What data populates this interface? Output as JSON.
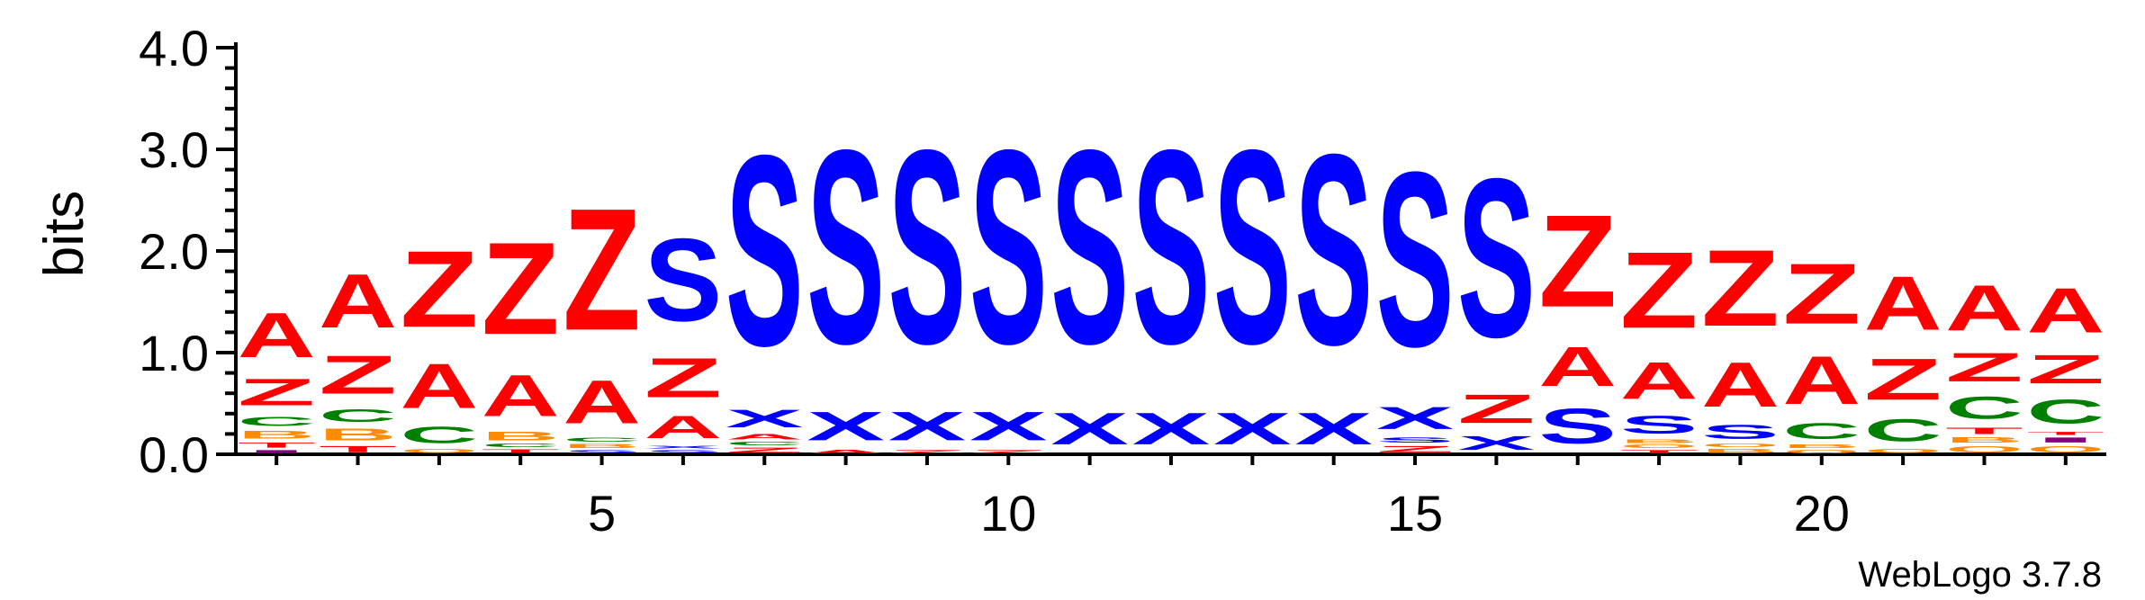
{
  "chart_data": {
    "type": "sequence-logo",
    "ylabel": "bits",
    "ylim": [
      0,
      4.0
    ],
    "yticks": [
      {
        "value": 0.0,
        "label": "0.0"
      },
      {
        "value": 1.0,
        "label": "1.0"
      },
      {
        "value": 2.0,
        "label": "2.0"
      },
      {
        "value": 3.0,
        "label": "3.0"
      },
      {
        "value": 4.0,
        "label": "4.0"
      }
    ],
    "xticks": [
      {
        "value": 5,
        "label": "5"
      },
      {
        "value": 10,
        "label": "10"
      },
      {
        "value": 15,
        "label": "15"
      },
      {
        "value": 20,
        "label": "20"
      }
    ],
    "positions": 23,
    "footer": "WebLogo 3.7.8",
    "colors": {
      "A": "#ff0000",
      "Z": "#ff0000",
      "S": "#0000ff",
      "X": "#0000ff",
      "C": "#008000",
      "B": "#ff8c00",
      "T": "#ff0000",
      "I": "#800080",
      "O": "#ff8c00"
    },
    "columns": [
      {
        "position": 1,
        "stack": [
          {
            "letter": "I",
            "height": 0.05
          },
          {
            "letter": "T",
            "height": 0.08
          },
          {
            "letter": "B",
            "height": 0.12
          },
          {
            "letter": "C",
            "height": 0.15
          },
          {
            "letter": "Z",
            "height": 0.42
          },
          {
            "letter": "A",
            "height": 0.7
          }
        ]
      },
      {
        "position": 2,
        "stack": [
          {
            "letter": "T",
            "height": 0.1
          },
          {
            "letter": "B",
            "height": 0.18
          },
          {
            "letter": "C",
            "height": 0.2
          },
          {
            "letter": "Z",
            "height": 0.6
          },
          {
            "letter": "A",
            "height": 0.85
          }
        ]
      },
      {
        "position": 3,
        "stack": [
          {
            "letter": "O",
            "height": 0.06
          },
          {
            "letter": "C",
            "height": 0.26
          },
          {
            "letter": "A",
            "height": 0.7
          },
          {
            "letter": "Z",
            "height": 1.2
          }
        ]
      },
      {
        "position": 4,
        "stack": [
          {
            "letter": "T",
            "height": 0.06
          },
          {
            "letter": "C",
            "height": 0.05
          },
          {
            "letter": "B",
            "height": 0.14
          },
          {
            "letter": "A",
            "height": 0.65
          },
          {
            "letter": "Z",
            "height": 1.45
          }
        ]
      },
      {
        "position": 5,
        "stack": [
          {
            "letter": "S",
            "height": 0.05
          },
          {
            "letter": "B",
            "height": 0.06
          },
          {
            "letter": "C",
            "height": 0.06
          },
          {
            "letter": "A",
            "height": 0.68
          },
          {
            "letter": "Z",
            "height": 1.92
          }
        ]
      },
      {
        "position": 6,
        "stack": [
          {
            "letter": "S",
            "height": 0.05
          },
          {
            "letter": "X",
            "height": 0.04
          },
          {
            "letter": "A",
            "height": 0.35
          },
          {
            "letter": "Z",
            "height": 0.62
          },
          {
            "letter": "S",
            "height": 1.3
          }
        ]
      },
      {
        "position": 7,
        "stack": [
          {
            "letter": "Z",
            "height": 0.08
          },
          {
            "letter": "C",
            "height": 0.05
          },
          {
            "letter": "A",
            "height": 0.08
          },
          {
            "letter": "X",
            "height": 0.28
          },
          {
            "letter": "S",
            "height": 3.0
          }
        ]
      },
      {
        "position": 8,
        "stack": [
          {
            "letter": "A",
            "height": 0.05
          },
          {
            "letter": "X",
            "height": 0.45
          },
          {
            "letter": "S",
            "height": 3.05
          }
        ]
      },
      {
        "position": 9,
        "stack": [
          {
            "letter": "Z",
            "height": 0.05
          },
          {
            "letter": "X",
            "height": 0.45
          },
          {
            "letter": "S",
            "height": 3.05
          }
        ]
      },
      {
        "position": 10,
        "stack": [
          {
            "letter": "Z",
            "height": 0.05
          },
          {
            "letter": "X",
            "height": 0.45
          },
          {
            "letter": "S",
            "height": 3.05
          }
        ]
      },
      {
        "position": 11,
        "stack": [
          {
            "letter": "X",
            "height": 0.5
          },
          {
            "letter": "S",
            "height": 3.05
          }
        ]
      },
      {
        "position": 12,
        "stack": [
          {
            "letter": "X",
            "height": 0.5
          },
          {
            "letter": "S",
            "height": 3.05
          }
        ]
      },
      {
        "position": 13,
        "stack": [
          {
            "letter": "X",
            "height": 0.5
          },
          {
            "letter": "S",
            "height": 3.05
          }
        ]
      },
      {
        "position": 14,
        "stack": [
          {
            "letter": "X",
            "height": 0.5
          },
          {
            "letter": "S",
            "height": 3.0
          }
        ]
      },
      {
        "position": 15,
        "stack": [
          {
            "letter": "Z",
            "height": 0.1
          },
          {
            "letter": "S",
            "height": 0.08
          },
          {
            "letter": "X",
            "height": 0.35
          },
          {
            "letter": "S",
            "height": 2.75
          }
        ]
      },
      {
        "position": 16,
        "stack": [
          {
            "letter": "X",
            "height": 0.22
          },
          {
            "letter": "Z",
            "height": 0.45
          },
          {
            "letter": "S",
            "height": 2.5
          }
        ]
      },
      {
        "position": 17,
        "stack": [
          {
            "letter": "S",
            "height": 0.55
          },
          {
            "letter": "A",
            "height": 0.62
          },
          {
            "letter": "Z",
            "height": 1.45
          }
        ]
      },
      {
        "position": 18,
        "stack": [
          {
            "letter": "T",
            "height": 0.05
          },
          {
            "letter": "O",
            "height": 0.05
          },
          {
            "letter": "B",
            "height": 0.05
          },
          {
            "letter": "S",
            "height": 0.28
          },
          {
            "letter": "A",
            "height": 0.58
          },
          {
            "letter": "Z",
            "height": 1.2
          }
        ]
      },
      {
        "position": 19,
        "stack": [
          {
            "letter": "B",
            "height": 0.06
          },
          {
            "letter": "O",
            "height": 0.05
          },
          {
            "letter": "S",
            "height": 0.22
          },
          {
            "letter": "A",
            "height": 0.7
          },
          {
            "letter": "Z",
            "height": 1.2
          }
        ]
      },
      {
        "position": 20,
        "stack": [
          {
            "letter": "O",
            "height": 0.05
          },
          {
            "letter": "B",
            "height": 0.05
          },
          {
            "letter": "C",
            "height": 0.25
          },
          {
            "letter": "A",
            "height": 0.75
          },
          {
            "letter": "Z",
            "height": 0.95
          }
        ]
      },
      {
        "position": 21,
        "stack": [
          {
            "letter": "O",
            "height": 0.06
          },
          {
            "letter": "C",
            "height": 0.35
          },
          {
            "letter": "Z",
            "height": 0.65
          },
          {
            "letter": "A",
            "height": 0.85
          }
        ]
      },
      {
        "position": 22,
        "stack": [
          {
            "letter": "O",
            "height": 0.1
          },
          {
            "letter": "B",
            "height": 0.08
          },
          {
            "letter": "T",
            "height": 0.1
          },
          {
            "letter": "C",
            "height": 0.35
          },
          {
            "letter": "Z",
            "height": 0.45
          },
          {
            "letter": "A",
            "height": 0.72
          }
        ]
      },
      {
        "position": 23,
        "stack": [
          {
            "letter": "O",
            "height": 0.1
          },
          {
            "letter": "I",
            "height": 0.08
          },
          {
            "letter": "T",
            "height": 0.05
          },
          {
            "letter": "C",
            "height": 0.38
          },
          {
            "letter": "Z",
            "height": 0.45
          },
          {
            "letter": "A",
            "height": 0.7
          }
        ]
      }
    ]
  }
}
